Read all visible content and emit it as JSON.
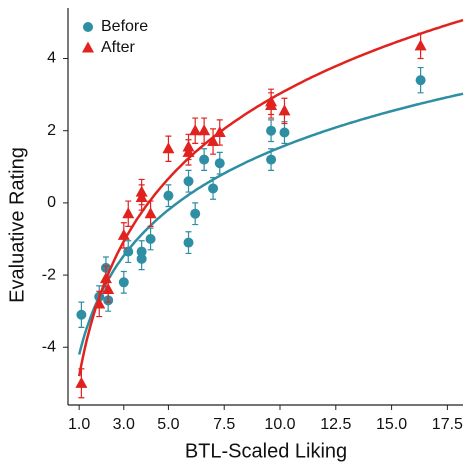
{
  "chart_data": {
    "type": "scatter",
    "xlabel": "BTL-Scaled Liking",
    "ylabel": "Evaluative Rating",
    "xlim": [
      0.5,
      18.2
    ],
    "ylim": [
      -5.6,
      5.4
    ],
    "xticks": [
      {
        "value": 1,
        "label": "1.0"
      },
      {
        "value": 3,
        "label": "3.0"
      },
      {
        "value": 5,
        "label": "5.0"
      },
      {
        "value": 7.5,
        "label": "7.5"
      },
      {
        "value": 10,
        "label": "10.0"
      },
      {
        "value": 12.5,
        "label": "12.5"
      },
      {
        "value": 15,
        "label": "15.0"
      },
      {
        "value": 17.5,
        "label": "17.5"
      }
    ],
    "yticks": [
      -4,
      -2,
      0,
      2,
      4
    ],
    "legend": "upper left",
    "series": [
      {
        "name": "Before",
        "color": "#2e8ea3",
        "marker": "circle",
        "x": [
          1.1,
          1.9,
          2.2,
          2.3,
          3.0,
          3.2,
          3.8,
          3.8,
          4.2,
          5.0,
          5.9,
          5.9,
          6.2,
          6.6,
          7.0,
          7.3,
          9.6,
          9.6,
          10.2,
          16.3
        ],
        "values": [
          -3.1,
          -2.6,
          -1.8,
          -2.7,
          -2.2,
          -1.35,
          -1.35,
          -1.55,
          -1.0,
          0.2,
          -1.1,
          0.6,
          -0.3,
          1.2,
          0.4,
          1.1,
          1.2,
          2.0,
          1.95,
          3.4
        ],
        "errors": [
          0.35,
          0.3,
          0.3,
          0.3,
          0.3,
          0.3,
          0.3,
          0.3,
          0.3,
          0.3,
          0.3,
          0.3,
          0.3,
          0.3,
          0.3,
          0.3,
          0.3,
          0.3,
          0.3,
          0.35
        ],
        "fit": {
          "intercept": -4.2,
          "slope": 2.49
        }
      },
      {
        "name": "After",
        "color": "#e0231f",
        "marker": "triangle",
        "x": [
          1.1,
          1.9,
          2.2,
          2.3,
          3.0,
          3.2,
          3.8,
          3.8,
          4.2,
          5.0,
          5.9,
          5.9,
          6.2,
          6.6,
          7.0,
          7.3,
          9.6,
          9.6,
          10.2,
          16.3
        ],
        "values": [
          -5.0,
          -2.8,
          -2.1,
          -2.4,
          -0.9,
          -0.3,
          0.3,
          0.15,
          -0.3,
          1.5,
          1.4,
          1.55,
          2.0,
          2.0,
          1.7,
          1.95,
          2.8,
          2.7,
          2.55,
          4.35
        ],
        "errors": [
          0.4,
          0.35,
          0.35,
          0.35,
          0.35,
          0.35,
          0.35,
          0.35,
          0.35,
          0.35,
          0.35,
          0.35,
          0.35,
          0.35,
          0.35,
          0.35,
          0.35,
          0.35,
          0.35,
          0.35
        ],
        "fit": {
          "intercept": -4.8,
          "slope": 3.4
        }
      }
    ]
  }
}
